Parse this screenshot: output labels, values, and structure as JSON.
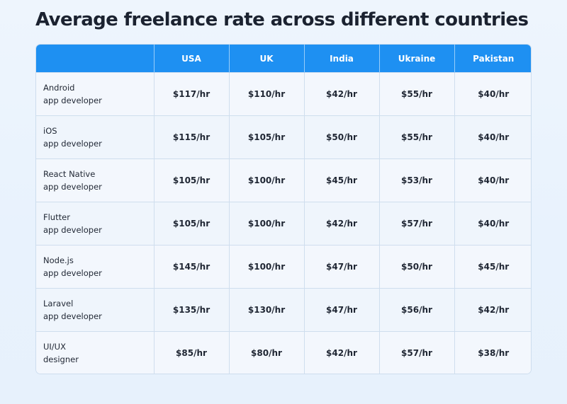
{
  "title": "Average freelance rate across different countries",
  "chart_data": {
    "type": "table",
    "title": "Average freelance rate across different countries",
    "columns": [
      "",
      "USA",
      "UK",
      "India",
      "Ukraine",
      "Pakistan"
    ],
    "unit": "/hr",
    "rows": [
      {
        "role": [
          "Android",
          "app developer"
        ],
        "values": [
          "$117/hr",
          "$110/hr",
          "$42/hr",
          "$55/hr",
          "$40/hr"
        ]
      },
      {
        "role": [
          "iOS",
          "app developer"
        ],
        "values": [
          "$115/hr",
          "$105/hr",
          "$50/hr",
          "$55/hr",
          "$40/hr"
        ]
      },
      {
        "role": [
          "React Native",
          "app developer"
        ],
        "values": [
          "$105/hr",
          "$100/hr",
          "$45/hr",
          "$53/hr",
          "$40/hr"
        ]
      },
      {
        "role": [
          "Flutter",
          "app developer"
        ],
        "values": [
          "$105/hr",
          "$100/hr",
          "$42/hr",
          "$57/hr",
          "$40/hr"
        ]
      },
      {
        "role": [
          "Node.js",
          "app developer"
        ],
        "values": [
          "$145/hr",
          "$100/hr",
          "$47/hr",
          "$50/hr",
          "$45/hr"
        ]
      },
      {
        "role": [
          "Laravel",
          "app developer"
        ],
        "values": [
          "$135/hr",
          "$130/hr",
          "$47/hr",
          "$56/hr",
          "$42/hr"
        ]
      },
      {
        "role": [
          "UI/UX",
          "designer"
        ],
        "values": [
          "$85/hr",
          "$80/hr",
          "$42/hr",
          "$57/hr",
          "$38/hr"
        ]
      }
    ]
  },
  "colors": {
    "header": "#1e90f2",
    "background": "#eaf3fd",
    "text": "#1b2230"
  }
}
